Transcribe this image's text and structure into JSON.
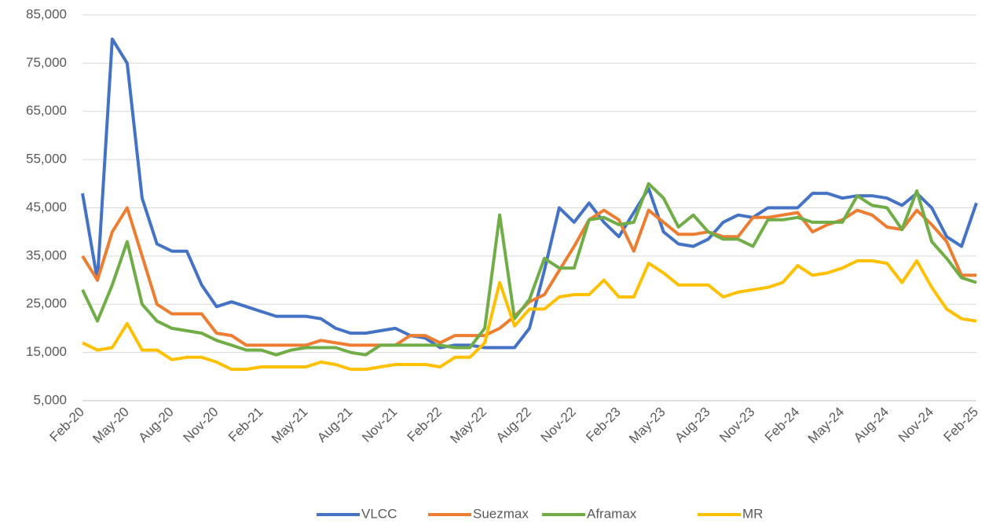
{
  "chart_data": {
    "type": "line",
    "categories": [
      "Feb-20",
      null,
      null,
      "May-20",
      null,
      null,
      "Aug-20",
      null,
      null,
      "Nov-20",
      null,
      null,
      "Feb-21",
      null,
      null,
      "May-21",
      null,
      null,
      "Aug-21",
      null,
      null,
      "Nov-21",
      null,
      null,
      "Feb-22",
      null,
      null,
      "May-22",
      null,
      null,
      "Aug-22",
      null,
      null,
      "Nov-22",
      null,
      null,
      "Feb-23",
      null,
      null,
      "May-23",
      null,
      null,
      "Aug-23",
      null,
      null,
      "Nov-23",
      null,
      null,
      "Feb-24",
      null,
      null,
      "May-24",
      null,
      null,
      "Aug-24",
      null,
      null,
      "Nov-24",
      null,
      null,
      "Feb-25"
    ],
    "series": [
      {
        "name": "VLCC",
        "color": "#4472c4",
        "values": [
          48000,
          30000,
          80000,
          75000,
          47000,
          37500,
          36000,
          36000,
          29000,
          24500,
          25500,
          24500,
          23500,
          22500,
          22500,
          22500,
          22000,
          20000,
          19000,
          19000,
          19500,
          20000,
          18500,
          18000,
          16000,
          16500,
          16500,
          16000,
          16000,
          16000,
          20000,
          32000,
          45000,
          42000,
          46000,
          42000,
          39000,
          44000,
          49000,
          40000,
          37500,
          37000,
          38500,
          42000,
          43500,
          43000,
          45000,
          45000,
          45000,
          48000,
          48000,
          47000,
          47500,
          47500,
          47000,
          45500,
          48000,
          45000,
          39000,
          37000,
          46000
        ]
      },
      {
        "name": "Suezmax",
        "color": "#ed7d31",
        "values": [
          35000,
          30000,
          40000,
          45000,
          35000,
          25000,
          23000,
          23000,
          23000,
          19000,
          18500,
          16500,
          16500,
          16500,
          16500,
          16500,
          17500,
          17000,
          16500,
          16500,
          16500,
          16500,
          18500,
          18500,
          17000,
          18500,
          18500,
          18500,
          20000,
          22500,
          25500,
          27000,
          32000,
          37000,
          42500,
          44500,
          42500,
          36000,
          44500,
          42000,
          39500,
          39500,
          40000,
          39000,
          39000,
          43000,
          43000,
          43500,
          44000,
          40000,
          41500,
          42500,
          44500,
          43500,
          41000,
          40500,
          44500,
          41500,
          38000,
          31000,
          31000
        ]
      },
      {
        "name": "Aframax",
        "color": "#70ad47",
        "values": [
          28000,
          21500,
          29000,
          38000,
          25000,
          21500,
          20000,
          19500,
          19000,
          17500,
          16500,
          15500,
          15500,
          14500,
          15500,
          16000,
          16000,
          16000,
          15000,
          14500,
          16500,
          16500,
          16500,
          16500,
          16500,
          16000,
          16000,
          20000,
          43500,
          22000,
          26000,
          34500,
          32500,
          32500,
          42500,
          43000,
          41500,
          42000,
          50000,
          47000,
          41000,
          43500,
          40000,
          38500,
          38500,
          37000,
          42500,
          42500,
          43000,
          42000,
          42000,
          42000,
          47500,
          45500,
          45000,
          40500,
          48500,
          38000,
          34500,
          30500,
          29500
        ]
      },
      {
        "name": "MR",
        "color": "#ffc000",
        "values": [
          17000,
          15500,
          16000,
          21000,
          15500,
          15500,
          13500,
          14000,
          14000,
          13000,
          11500,
          11500,
          12000,
          12000,
          12000,
          12000,
          13000,
          12500,
          11500,
          11500,
          12000,
          12500,
          12500,
          12500,
          12000,
          14000,
          14000,
          17000,
          29500,
          20500,
          24000,
          24000,
          26500,
          27000,
          27000,
          30000,
          26500,
          26500,
          33500,
          31500,
          29000,
          29000,
          29000,
          26500,
          27500,
          28000,
          28500,
          29500,
          33000,
          31000,
          31500,
          32500,
          34000,
          34000,
          33500,
          29500,
          34000,
          28500,
          24000,
          22000,
          21500
        ]
      }
    ],
    "ylim": [
      5000,
      85000
    ],
    "yticks": [
      {
        "value": 5000,
        "label": "5,000"
      },
      {
        "value": 15000,
        "label": "15,000"
      },
      {
        "value": 25000,
        "label": "25,000"
      },
      {
        "value": 35000,
        "label": "35,000"
      },
      {
        "value": 45000,
        "label": "45,000"
      },
      {
        "value": 55000,
        "label": "55,000"
      },
      {
        "value": 65000,
        "label": "65,000"
      },
      {
        "value": 75000,
        "label": "75,000"
      },
      {
        "value": 85000,
        "label": "85,000"
      }
    ],
    "grid": true,
    "legend": "bottom"
  }
}
